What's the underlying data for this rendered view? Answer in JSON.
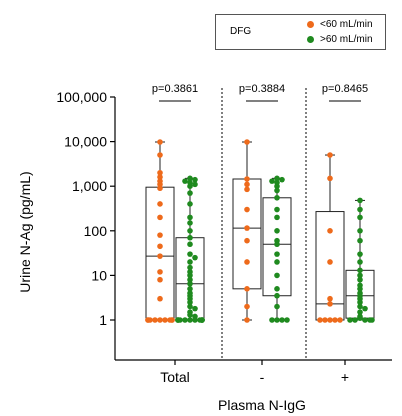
{
  "chart_data": {
    "type": "box",
    "ylabel": "Urine N-Ag (pg/mL)",
    "xlabel": "Plasma N-IgG",
    "yscale": "log",
    "ylim": [
      0.5,
      100000
    ],
    "yticks": [
      1,
      10,
      100,
      1000,
      10000,
      100000
    ],
    "ytick_labels": [
      "1",
      "10",
      "100",
      "1,000",
      "10,000",
      "100,000"
    ],
    "groups": [
      {
        "label": "Total",
        "pvalue": "p=0.3861"
      },
      {
        "label": "-",
        "pvalue": "p=0.3884"
      },
      {
        "label": "+",
        "pvalue": "p=0.8465"
      }
    ],
    "legend": {
      "title": "DFG",
      "entries": [
        {
          "name": "<60 mL/min",
          "color": "#ee6a1b"
        },
        {
          "name": ">60 mL/min",
          "color": "#1f8a1f"
        }
      ]
    },
    "series": [
      {
        "name": "<60 mL/min",
        "group": "Total",
        "box": {
          "min": 1,
          "q1": 1,
          "median": 27,
          "q3": 950,
          "max": 9800
        },
        "points": [
          9800,
          5000,
          2000,
          1600,
          1300,
          1100,
          900,
          400,
          200,
          80,
          45,
          27,
          12,
          8,
          3,
          1,
          1,
          1,
          1,
          1,
          1,
          1,
          1,
          1
        ]
      },
      {
        "name": ">60 mL/min",
        "group": "Total",
        "box": {
          "min": 1,
          "q1": 1,
          "median": 6.5,
          "q3": 70,
          "max": 1500
        },
        "points": [
          1500,
          1400,
          1300,
          1200,
          1100,
          1000,
          700,
          400,
          200,
          150,
          100,
          70,
          50,
          30,
          25,
          20,
          15,
          12,
          10,
          8,
          6.5,
          5,
          4,
          3.5,
          3,
          2.5,
          2,
          1.8,
          1.5,
          1.3,
          1.2,
          1,
          1,
          1,
          1,
          1,
          1,
          1,
          1,
          1,
          1,
          1,
          1
        ]
      },
      {
        "name": "<60 mL/min",
        "group": "-",
        "box": {
          "min": 1,
          "q1": 5,
          "median": 115,
          "q3": 1450,
          "max": 9800
        },
        "points": [
          9800,
          1450,
          1100,
          850,
          300,
          115,
          60,
          20,
          5,
          2,
          1
        ]
      },
      {
        "name": ">60 mL/min",
        "group": "-",
        "box": {
          "min": 1,
          "q1": 3.5,
          "median": 50,
          "q3": 550,
          "max": 1500
        },
        "points": [
          1500,
          1400,
          1300,
          1200,
          1000,
          800,
          550,
          300,
          200,
          100,
          60,
          50,
          30,
          20,
          10,
          5,
          3.5,
          2,
          1,
          1,
          1,
          1
        ]
      },
      {
        "name": "<60 mL/min",
        "group": "+",
        "box": {
          "min": 1,
          "q1": 1,
          "median": 2.3,
          "q3": 270,
          "max": 5000
        },
        "points": [
          5000,
          1500,
          100,
          20,
          3,
          2.3,
          1,
          1,
          1,
          1,
          1
        ]
      },
      {
        "name": ">60 mL/min",
        "group": "+",
        "box": {
          "min": 1,
          "q1": 1.1,
          "median": 3.5,
          "q3": 13,
          "max": 480
        },
        "points": [
          480,
          300,
          200,
          100,
          60,
          30,
          20,
          13,
          10,
          8,
          6,
          5,
          4,
          3.5,
          3,
          2.5,
          2,
          1.8,
          1.5,
          1.2,
          1.1,
          1,
          1,
          1,
          1,
          1
        ]
      }
    ]
  }
}
